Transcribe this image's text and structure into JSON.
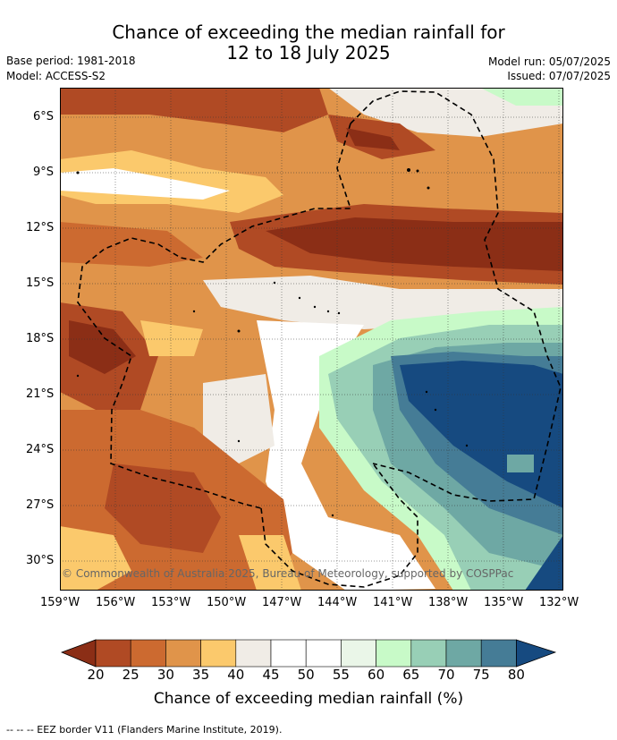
{
  "title_line1": "Chance of exceeding the median rainfall for",
  "title_line2": "12 to 18 July 2025",
  "base_period": "Base period: 1981-2018",
  "model": "Model: ACCESS-S2",
  "model_run": "Model run: 05/07/2025",
  "issued": "Issued: 07/07/2025",
  "copyright": "© Commonwealth of Australia 2025, Bureau of Meteorology, supported by COSPPac",
  "lat_labels": [
    "6°S",
    "9°S",
    "12°S",
    "15°S",
    "18°S",
    "21°S",
    "24°S",
    "27°S",
    "30°S"
  ],
  "lon_labels": [
    "159°W",
    "156°W",
    "153°W",
    "150°W",
    "147°W",
    "144°W",
    "141°W",
    "138°W",
    "135°W",
    "132°W"
  ],
  "colorbar": {
    "labels": [
      "20",
      "25",
      "30",
      "35",
      "40",
      "45",
      "50",
      "55",
      "60",
      "65",
      "70",
      "75",
      "80"
    ],
    "colors": [
      "#8b2e16",
      "#b04a24",
      "#cc6a30",
      "#e0944a",
      "#fbc96c",
      "#f0ece6",
      "#ffffff",
      "#ffffff",
      "#eaf6e8",
      "#c8fac8",
      "#98cfb6",
      "#6ea8a4",
      "#457c96",
      "#164a80"
    ],
    "title": "Chance of exceeding median rainfall (%)"
  },
  "footer": "-- -- -- EEZ border V11 (Flanders Marine Institute, 2019)."
}
